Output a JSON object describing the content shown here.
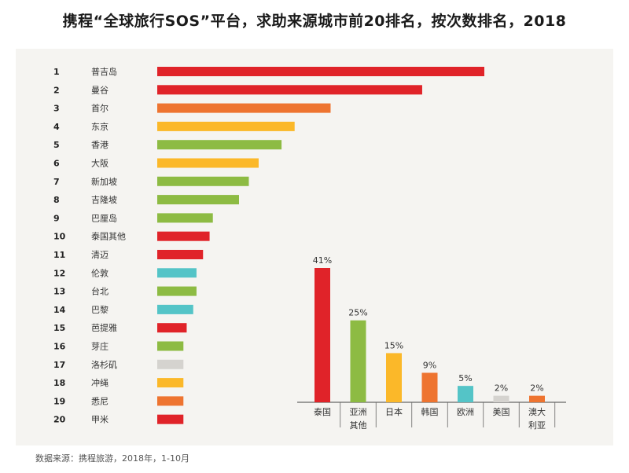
{
  "title": "携程“全球旅行SOS”平台，求助来源城市前20排名，按次数排名，2018",
  "source": "数据来源：携程旅游，2018年，1-10月",
  "chart_data": [
    {
      "type": "bar",
      "orientation": "horizontal",
      "categories": [
        "普吉岛",
        "曼谷",
        "首尔",
        "东京",
        "香港",
        "大阪",
        "新加坡",
        "吉隆坡",
        "巴厘岛",
        "泰国其他",
        "清迈",
        "伦敦",
        "台北",
        "巴黎",
        "芭提雅",
        "芽庄",
        "洛杉矶",
        "冲绳",
        "悉尼",
        "甲米"
      ],
      "ranks": [
        "1",
        "2",
        "3",
        "4",
        "5",
        "6",
        "7",
        "8",
        "9",
        "10",
        "11",
        "12",
        "13",
        "14",
        "15",
        "16",
        "17",
        "18",
        "19",
        "20"
      ],
      "values": [
        100,
        81,
        53,
        42,
        38,
        31,
        28,
        25,
        17,
        16,
        14,
        12,
        12,
        11,
        9,
        8,
        8,
        8,
        8,
        8
      ],
      "colors": [
        "#e02329",
        "#e02329",
        "#ee7430",
        "#fbb829",
        "#8dbb43",
        "#fbb829",
        "#8dbb43",
        "#8dbb43",
        "#8dbb43",
        "#e02329",
        "#e02329",
        "#54c4c7",
        "#8dbb43",
        "#54c4c7",
        "#e02329",
        "#8dbb43",
        "#d5d3cf",
        "#fbb829",
        "#ee7430",
        "#e02329"
      ]
    },
    {
      "type": "bar",
      "orientation": "vertical",
      "categories": [
        "泰国",
        "亚洲\n其他",
        "日本",
        "韩国",
        "欧洲",
        "美国",
        "澳大\n利亚"
      ],
      "values": [
        41,
        25,
        15,
        9,
        5,
        2,
        2
      ],
      "value_labels": [
        "41%",
        "25%",
        "15%",
        "9%",
        "5%",
        "2%",
        "2%"
      ],
      "colors": [
        "#e02329",
        "#8dbb43",
        "#fbb829",
        "#ee7430",
        "#54c4c7",
        "#d5d3cf",
        "#ee7430"
      ]
    }
  ]
}
